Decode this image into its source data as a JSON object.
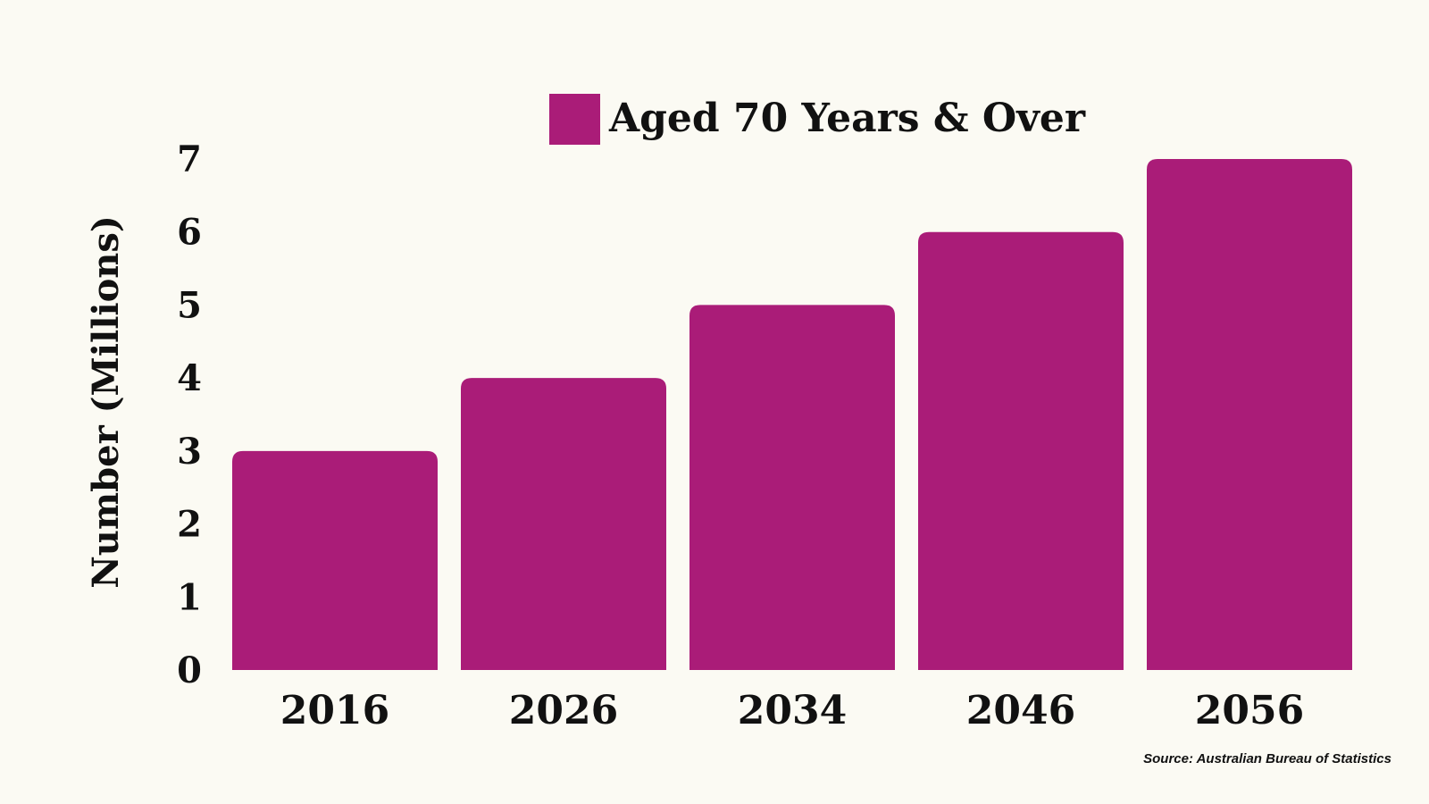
{
  "colors": {
    "background": "#fbfaf3",
    "bar": "#aa1c78",
    "text": "#111111"
  },
  "chart_data": {
    "type": "bar",
    "categories": [
      "2016",
      "2026",
      "2034",
      "2046",
      "2056"
    ],
    "series": [
      {
        "name": "Aged 70 Years & Over",
        "values": [
          3,
          4,
          5,
          6,
          7
        ]
      }
    ],
    "ylabel": "Number (Millions)",
    "xlabel": "",
    "ylim": [
      0,
      7
    ],
    "yticks": [
      "0",
      "1",
      "2",
      "3",
      "4",
      "5",
      "6",
      "7"
    ],
    "grid": false,
    "legend_position": "top-center"
  },
  "source": "Source: Australian Bureau of Statistics"
}
